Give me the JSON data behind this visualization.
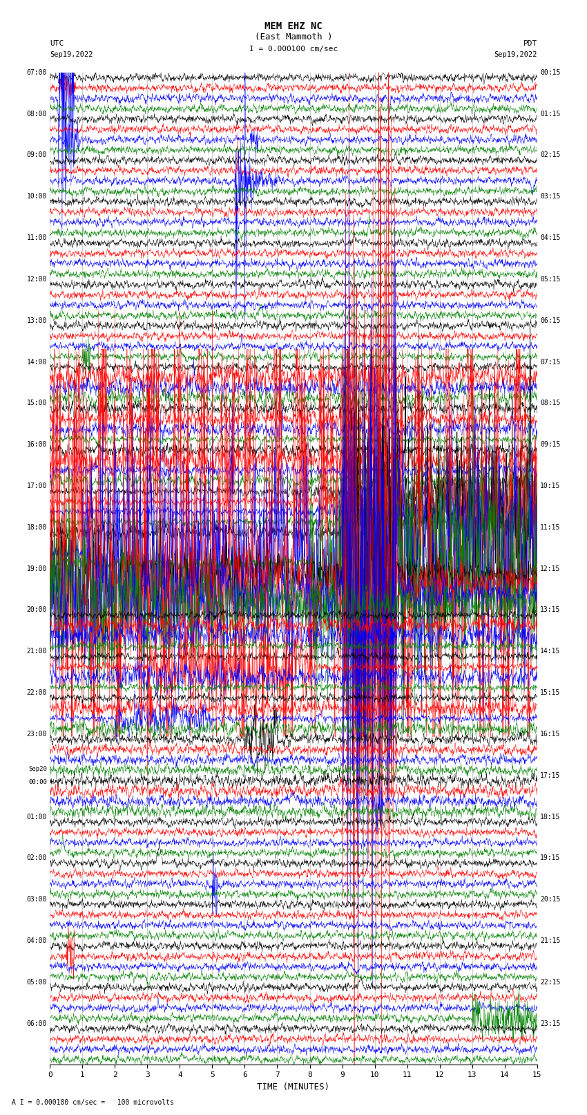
{
  "title_line1": "MEM EHZ NC",
  "title_line2": "(East Mammoth )",
  "scale_text": "I = 0.000100 cm/sec",
  "xlabel": "TIME (MINUTES)",
  "footer_text": "A I = 0.000100 cm/sec =   100 microvolts",
  "left_times": [
    "07:00",
    "08:00",
    "09:00",
    "10:00",
    "11:00",
    "12:00",
    "13:00",
    "14:00",
    "15:00",
    "16:00",
    "17:00",
    "18:00",
    "19:00",
    "20:00",
    "21:00",
    "22:00",
    "23:00",
    "00:00",
    "01:00",
    "02:00",
    "03:00",
    "04:00",
    "05:00",
    "06:00"
  ],
  "right_times": [
    "00:15",
    "01:15",
    "02:15",
    "03:15",
    "04:15",
    "05:15",
    "06:15",
    "07:15",
    "08:15",
    "09:15",
    "10:15",
    "11:15",
    "12:15",
    "13:15",
    "14:15",
    "15:15",
    "16:15",
    "17:15",
    "18:15",
    "19:15",
    "20:15",
    "21:15",
    "22:15",
    "23:15"
  ],
  "colors": [
    "black",
    "red",
    "blue",
    "green"
  ],
  "n_traces_per_hour": 4,
  "n_hours": 24,
  "x_ticks": [
    0,
    1,
    2,
    3,
    4,
    5,
    6,
    7,
    8,
    9,
    10,
    11,
    12,
    13,
    14,
    15
  ],
  "bg_color": "white",
  "fig_width": 8.5,
  "fig_height": 16.13,
  "dpi": 100
}
